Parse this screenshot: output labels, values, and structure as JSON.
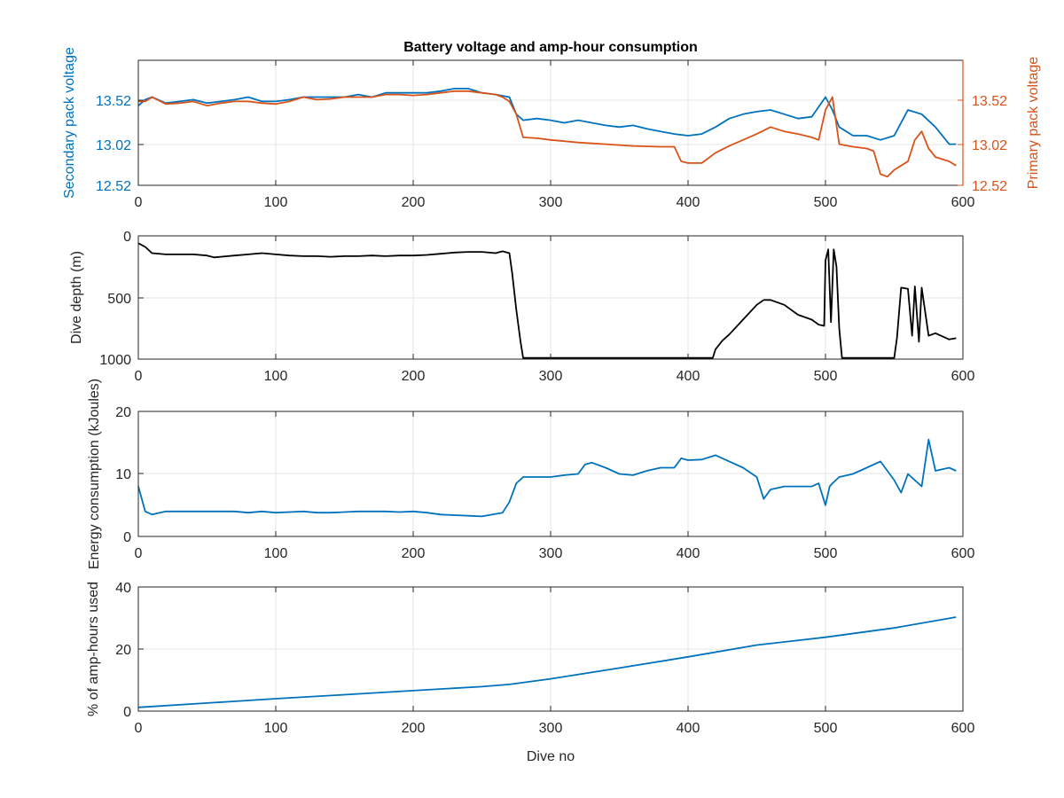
{
  "chart_data": [
    {
      "type": "line",
      "title": "Battery voltage and amp-hour consumption",
      "xlabel": "",
      "ylabel": "Secondary pack voltage",
      "ylabel_right": "Primary pack voltage",
      "xlim": [
        0,
        600
      ],
      "ylim": [
        12.52,
        13.98
      ],
      "ylim_right": [
        12.52,
        13.98
      ],
      "xticks": [
        "0",
        "100",
        "200",
        "300",
        "400",
        "500",
        "600"
      ],
      "yticks": [
        "12.52",
        "13.02",
        "13.52"
      ],
      "yticks_right": [
        "12.52",
        "13.02",
        "13.52"
      ],
      "grid": true,
      "colors": {
        "secondary": "#0072BD",
        "primary": "#D95319"
      },
      "series": [
        {
          "axis": "left",
          "x": [
            0,
            5,
            10,
            20,
            30,
            40,
            50,
            60,
            70,
            80,
            90,
            100,
            110,
            120,
            130,
            140,
            150,
            160,
            170,
            180,
            190,
            200,
            210,
            220,
            230,
            240,
            250,
            260,
            270,
            275,
            280,
            290,
            300,
            310,
            320,
            330,
            340,
            350,
            360,
            370,
            380,
            390,
            400,
            410,
            420,
            430,
            440,
            450,
            460,
            470,
            480,
            490,
            500,
            505,
            510,
            520,
            530,
            540,
            550,
            560,
            570,
            580,
            590,
            595
          ],
          "y": [
            13.45,
            13.52,
            13.55,
            13.48,
            13.5,
            13.52,
            13.48,
            13.5,
            13.52,
            13.55,
            13.5,
            13.5,
            13.52,
            13.55,
            13.55,
            13.55,
            13.55,
            13.58,
            13.55,
            13.6,
            13.6,
            13.6,
            13.6,
            13.62,
            13.65,
            13.65,
            13.6,
            13.58,
            13.55,
            13.35,
            13.28,
            13.3,
            13.28,
            13.25,
            13.28,
            13.25,
            13.22,
            13.2,
            13.22,
            13.18,
            13.15,
            13.12,
            13.1,
            13.12,
            13.2,
            13.3,
            13.35,
            13.38,
            13.4,
            13.35,
            13.3,
            13.32,
            13.55,
            13.4,
            13.2,
            13.1,
            13.1,
            13.05,
            13.1,
            13.4,
            13.35,
            13.2,
            13.0,
            13.0
          ]
        },
        {
          "axis": "right",
          "x": [
            0,
            5,
            10,
            20,
            30,
            40,
            50,
            60,
            70,
            80,
            90,
            100,
            110,
            120,
            130,
            140,
            150,
            160,
            170,
            180,
            190,
            200,
            210,
            220,
            230,
            240,
            250,
            260,
            265,
            270,
            275,
            280,
            290,
            300,
            320,
            340,
            360,
            380,
            390,
            395,
            400,
            410,
            420,
            430,
            440,
            450,
            460,
            470,
            480,
            490,
            495,
            500,
            505,
            510,
            520,
            530,
            535,
            540,
            545,
            550,
            555,
            560,
            565,
            570,
            575,
            580,
            590,
            595
          ],
          "y": [
            13.5,
            13.5,
            13.55,
            13.47,
            13.48,
            13.5,
            13.45,
            13.48,
            13.5,
            13.5,
            13.48,
            13.47,
            13.5,
            13.55,
            13.52,
            13.53,
            13.55,
            13.55,
            13.55,
            13.58,
            13.58,
            13.57,
            13.58,
            13.6,
            13.62,
            13.62,
            13.6,
            13.58,
            13.55,
            13.5,
            13.35,
            13.08,
            13.07,
            13.05,
            13.02,
            13.0,
            12.98,
            12.97,
            12.97,
            12.8,
            12.78,
            12.78,
            12.9,
            12.98,
            13.05,
            13.12,
            13.2,
            13.15,
            13.12,
            13.08,
            13.05,
            13.4,
            13.55,
            13.0,
            12.97,
            12.95,
            12.92,
            12.65,
            12.62,
            12.7,
            12.75,
            12.8,
            13.05,
            13.15,
            12.95,
            12.85,
            12.8,
            12.75
          ]
        }
      ]
    },
    {
      "type": "line",
      "title": "",
      "xlabel": "",
      "ylabel": "Dive depth (m)",
      "xlim": [
        0,
        600
      ],
      "ylim": [
        0,
        1000
      ],
      "y_reversed": true,
      "xticks": [
        "0",
        "100",
        "200",
        "300",
        "400",
        "500",
        "600"
      ],
      "yticks": [
        "0",
        "500",
        "1000"
      ],
      "grid": true,
      "colors": {
        "line": "#000000"
      },
      "series": [
        {
          "x": [
            0,
            5,
            10,
            20,
            30,
            40,
            50,
            55,
            60,
            70,
            80,
            90,
            100,
            110,
            120,
            130,
            140,
            150,
            160,
            170,
            180,
            190,
            200,
            210,
            220,
            230,
            240,
            250,
            260,
            265,
            270,
            272,
            275,
            278,
            280,
            290,
            300,
            320,
            340,
            360,
            380,
            400,
            410,
            418,
            420,
            425,
            430,
            440,
            450,
            455,
            460,
            470,
            480,
            490,
            495,
            499,
            500,
            502,
            504,
            506,
            508,
            510,
            512,
            515,
            520,
            540,
            548,
            550,
            552,
            555,
            560,
            563,
            565,
            568,
            570,
            575,
            580,
            590,
            595
          ],
          "y": [
            60,
            90,
            140,
            150,
            150,
            150,
            160,
            175,
            170,
            160,
            150,
            140,
            150,
            160,
            165,
            165,
            170,
            165,
            165,
            160,
            165,
            160,
            160,
            155,
            145,
            135,
            130,
            130,
            140,
            125,
            140,
            300,
            600,
            850,
            990,
            990,
            990,
            990,
            990,
            990,
            990,
            990,
            990,
            990,
            920,
            850,
            800,
            680,
            560,
            520,
            520,
            560,
            640,
            680,
            720,
            730,
            200,
            110,
            700,
            110,
            250,
            750,
            990,
            990,
            990,
            990,
            990,
            990,
            830,
            420,
            430,
            810,
            410,
            860,
            420,
            810,
            790,
            840,
            830
          ]
        }
      ]
    },
    {
      "type": "line",
      "title": "",
      "xlabel": "",
      "ylabel": "Energy consumption (kJoules)",
      "xlim": [
        0,
        600
      ],
      "ylim": [
        0,
        20
      ],
      "xticks": [
        "0",
        "100",
        "200",
        "300",
        "400",
        "500",
        "600"
      ],
      "yticks": [
        "0",
        "10",
        "20"
      ],
      "grid": true,
      "colors": {
        "line": "#0072BD"
      },
      "series": [
        {
          "x": [
            0,
            5,
            10,
            20,
            30,
            40,
            50,
            60,
            70,
            80,
            90,
            100,
            110,
            120,
            130,
            140,
            150,
            160,
            170,
            180,
            190,
            200,
            210,
            220,
            230,
            240,
            250,
            260,
            265,
            270,
            275,
            280,
            290,
            300,
            310,
            320,
            325,
            330,
            340,
            350,
            360,
            370,
            380,
            390,
            395,
            400,
            410,
            420,
            430,
            440,
            450,
            455,
            460,
            470,
            480,
            490,
            495,
            500,
            503,
            505,
            510,
            520,
            530,
            540,
            550,
            555,
            560,
            570,
            575,
            580,
            590,
            595
          ],
          "y": [
            8,
            4,
            3.5,
            4,
            4,
            4,
            4,
            4,
            4,
            3.8,
            4,
            3.8,
            3.9,
            4,
            3.8,
            3.8,
            3.9,
            4,
            4,
            4,
            3.9,
            4,
            3.8,
            3.5,
            3.4,
            3.3,
            3.2,
            3.6,
            3.8,
            5.5,
            8.5,
            9.5,
            9.5,
            9.5,
            9.8,
            10,
            11.5,
            11.8,
            11,
            10,
            9.8,
            10.5,
            11,
            11,
            12.5,
            12.2,
            12.3,
            13,
            12,
            11,
            9.5,
            6,
            7.5,
            8,
            8,
            8,
            8.5,
            5,
            8,
            8.5,
            9.5,
            10,
            11,
            12,
            9,
            7,
            10,
            8,
            15.5,
            10.5,
            11,
            10.5
          ]
        }
      ]
    },
    {
      "type": "line",
      "title": "",
      "xlabel": "Dive no",
      "ylabel": "% of amp-hours used",
      "xlim": [
        0,
        600
      ],
      "ylim": [
        0,
        40
      ],
      "xticks": [
        "0",
        "100",
        "200",
        "300",
        "400",
        "500",
        "600"
      ],
      "yticks": [
        "0",
        "20",
        "40"
      ],
      "grid": true,
      "colors": {
        "line": "#0072BD"
      },
      "series": [
        {
          "x": [
            0,
            50,
            100,
            150,
            200,
            250,
            270,
            300,
            350,
            400,
            450,
            500,
            550,
            595
          ],
          "y": [
            1.2,
            2.6,
            4.0,
            5.3,
            6.6,
            7.9,
            8.6,
            10.4,
            13.9,
            17.5,
            21.3,
            23.8,
            26.8,
            30.3
          ]
        }
      ]
    }
  ]
}
